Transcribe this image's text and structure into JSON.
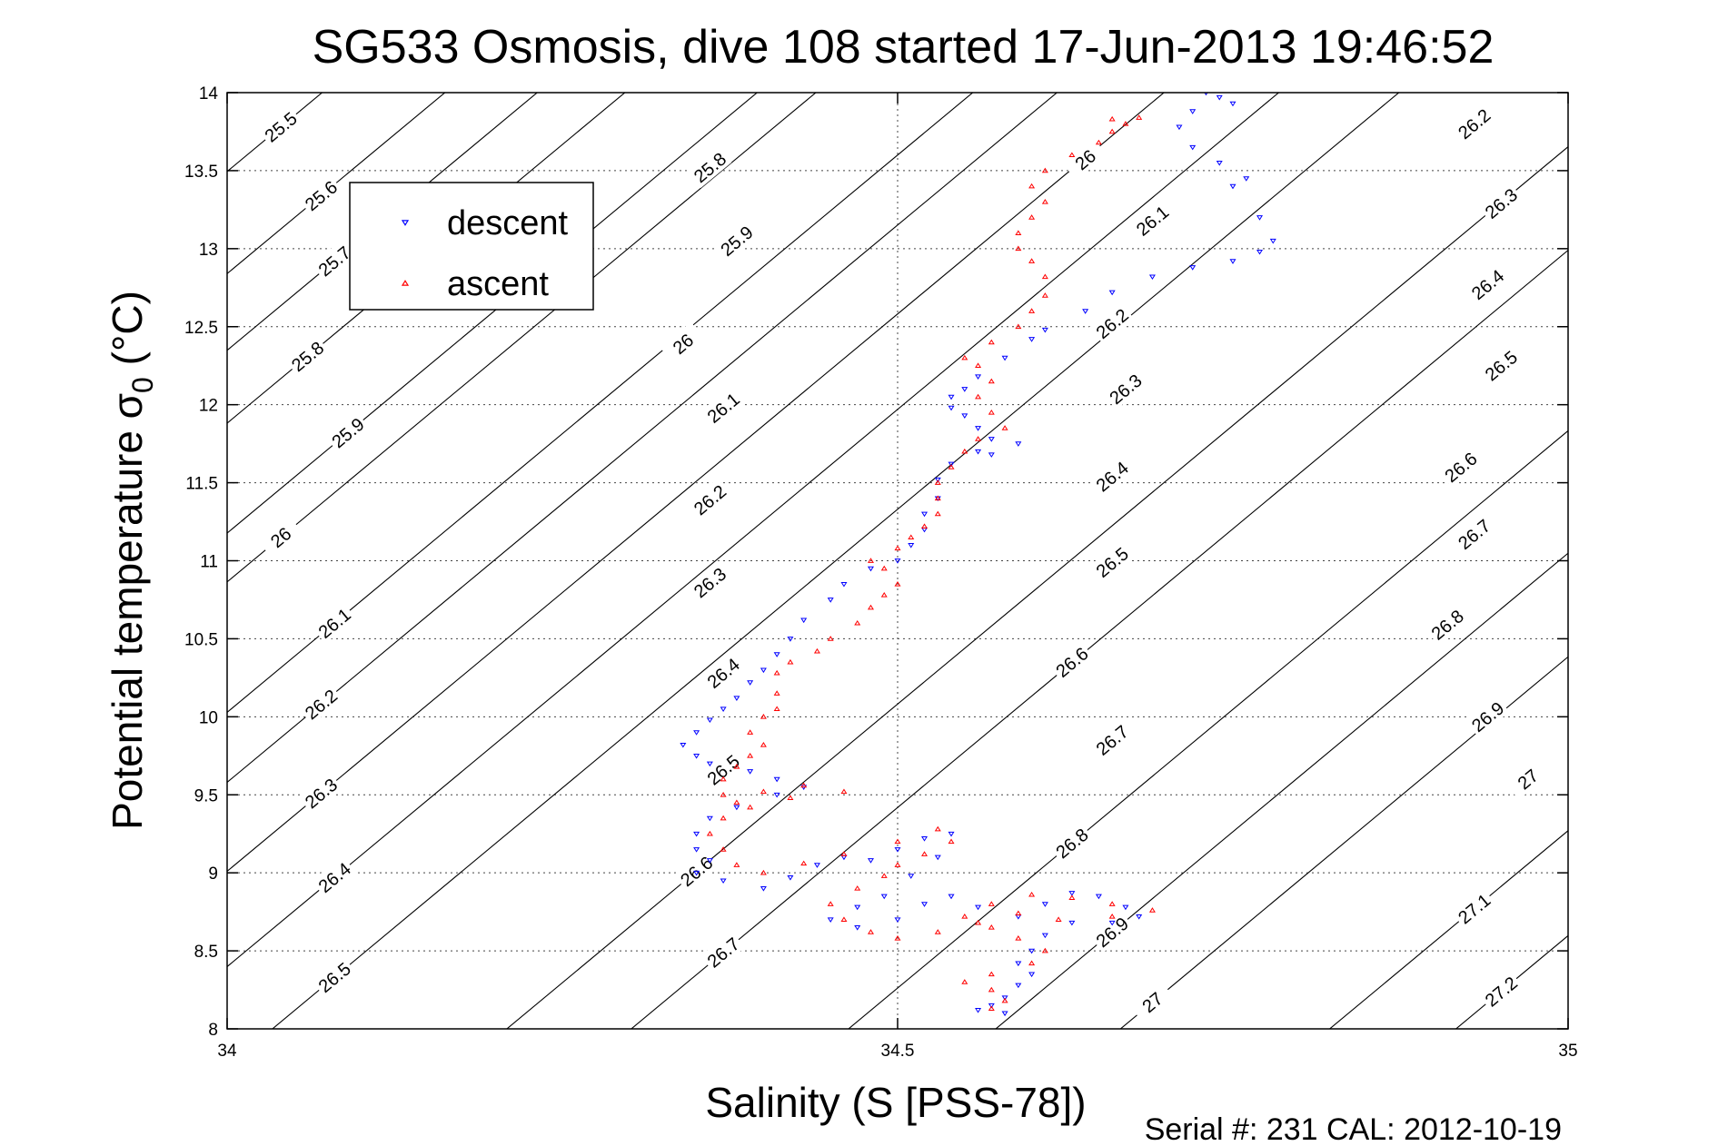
{
  "chart_data": {
    "type": "scatter",
    "title": "SG533 Osmosis, dive 108 started 17-Jun-2013 19:46:52",
    "xlabel": "Salinity (S [PSS-78])",
    "ylabel": "Potential temperature σ",
    "ylabel_sub": "0",
    "ylabel_unit": " (°C)",
    "footer": "Serial #: 231  CAL: 2012-10-19",
    "xlim": [
      34,
      35
    ],
    "ylim": [
      8,
      14
    ],
    "xticks": [
      "34",
      "34.5",
      "35"
    ],
    "yticks": [
      "8",
      "8.5",
      "9",
      "9.5",
      "10",
      "10.5",
      "11",
      "11.5",
      "12",
      "12.5",
      "13",
      "13.5",
      "14"
    ],
    "grid": true,
    "legend": {
      "placement": "top-left",
      "entries": [
        {
          "name": "descent",
          "color": "#0000ff",
          "marker": "triangle-down"
        },
        {
          "name": "ascent",
          "color": "#ff0000",
          "marker": "triangle-up"
        }
      ]
    },
    "density_contours": [
      {
        "level": "25.5",
        "labels": [
          [
            34.04,
            13.78
          ]
        ]
      },
      {
        "level": "25.6",
        "labels": [
          [
            34.07,
            13.34
          ]
        ]
      },
      {
        "level": "25.7",
        "labels": [
          [
            34.08,
            12.92
          ]
        ]
      },
      {
        "level": "25.8",
        "labels": [
          [
            34.06,
            12.31
          ],
          [
            34.36,
            13.52
          ]
        ]
      },
      {
        "level": "25.9",
        "labels": [
          [
            34.09,
            11.82
          ],
          [
            34.38,
            13.05
          ]
        ]
      },
      {
        "level": "26",
        "labels": [
          [
            34.04,
            11.15
          ],
          [
            34.34,
            12.39
          ],
          [
            34.64,
            13.57
          ]
        ]
      },
      {
        "level": "26.1",
        "labels": [
          [
            34.08,
            10.6
          ],
          [
            34.37,
            11.98
          ],
          [
            34.69,
            13.18
          ]
        ]
      },
      {
        "level": "26.2",
        "labels": [
          [
            34.07,
            10.08
          ],
          [
            34.36,
            11.39
          ],
          [
            34.66,
            12.52
          ],
          [
            34.93,
            13.8
          ]
        ]
      },
      {
        "level": "26.3",
        "labels": [
          [
            34.07,
            9.51
          ],
          [
            34.36,
            10.86
          ],
          [
            34.67,
            12.1
          ],
          [
            34.95,
            13.29
          ]
        ]
      },
      {
        "level": "26.4",
        "labels": [
          [
            34.08,
            8.97
          ],
          [
            34.37,
            10.28
          ],
          [
            34.66,
            11.54
          ],
          [
            34.94,
            12.77
          ]
        ]
      },
      {
        "level": "26.5",
        "labels": [
          [
            34.08,
            8.33
          ],
          [
            34.37,
            9.66
          ],
          [
            34.66,
            10.99
          ],
          [
            34.95,
            12.25
          ]
        ]
      },
      {
        "level": "26.6",
        "labels": [
          [
            34.35,
            9.01
          ],
          [
            34.63,
            10.35
          ],
          [
            34.92,
            11.6
          ]
        ]
      },
      {
        "level": "26.7",
        "labels": [
          [
            34.37,
            8.49
          ],
          [
            34.66,
            9.85
          ],
          [
            34.93,
            11.17
          ]
        ]
      },
      {
        "level": "26.8",
        "labels": [
          [
            34.63,
            9.19
          ],
          [
            34.91,
            10.59
          ]
        ]
      },
      {
        "level": "26.9",
        "labels": [
          [
            34.66,
            8.62
          ],
          [
            34.94,
            10.0
          ]
        ]
      },
      {
        "level": "27",
        "labels": [
          [
            34.69,
            8.17
          ],
          [
            34.97,
            9.6
          ]
        ]
      },
      {
        "level": "27.1",
        "labels": [
          [
            34.93,
            8.77
          ]
        ]
      },
      {
        "level": "27.2",
        "labels": [
          [
            34.95,
            8.24
          ]
        ]
      }
    ],
    "series": [
      {
        "name": "descent",
        "color": "#0000ff",
        "marker": "triangle-down",
        "points": [
          [
            34.73,
            14.0
          ],
          [
            34.74,
            13.97
          ],
          [
            34.75,
            13.93
          ],
          [
            34.72,
            13.88
          ],
          [
            34.71,
            13.78
          ],
          [
            34.72,
            13.65
          ],
          [
            34.74,
            13.55
          ],
          [
            34.76,
            13.45
          ],
          [
            34.75,
            13.4
          ],
          [
            34.77,
            13.2
          ],
          [
            34.78,
            13.05
          ],
          [
            34.77,
            12.98
          ],
          [
            34.75,
            12.92
          ],
          [
            34.72,
            12.88
          ],
          [
            34.69,
            12.82
          ],
          [
            34.66,
            12.72
          ],
          [
            34.64,
            12.6
          ],
          [
            34.61,
            12.48
          ],
          [
            34.6,
            12.42
          ],
          [
            34.58,
            12.3
          ],
          [
            34.56,
            12.18
          ],
          [
            34.55,
            12.1
          ],
          [
            34.54,
            12.05
          ],
          [
            34.54,
            11.98
          ],
          [
            34.55,
            11.93
          ],
          [
            34.56,
            11.85
          ],
          [
            34.57,
            11.78
          ],
          [
            34.59,
            11.75
          ],
          [
            34.57,
            11.68
          ],
          [
            34.56,
            11.7
          ],
          [
            34.54,
            11.62
          ],
          [
            34.53,
            11.52
          ],
          [
            34.53,
            11.4
          ],
          [
            34.52,
            11.3
          ],
          [
            34.52,
            11.2
          ],
          [
            34.51,
            11.1
          ],
          [
            34.5,
            11.0
          ],
          [
            34.48,
            10.95
          ],
          [
            34.46,
            10.85
          ],
          [
            34.45,
            10.75
          ],
          [
            34.43,
            10.62
          ],
          [
            34.42,
            10.5
          ],
          [
            34.41,
            10.4
          ],
          [
            34.4,
            10.3
          ],
          [
            34.39,
            10.22
          ],
          [
            34.38,
            10.12
          ],
          [
            34.37,
            10.05
          ],
          [
            34.36,
            9.98
          ],
          [
            34.35,
            9.9
          ],
          [
            34.34,
            9.82
          ],
          [
            34.35,
            9.75
          ],
          [
            34.36,
            9.7
          ],
          [
            34.39,
            9.65
          ],
          [
            34.41,
            9.6
          ],
          [
            34.43,
            9.55
          ],
          [
            34.41,
            9.5
          ],
          [
            34.38,
            9.42
          ],
          [
            34.36,
            9.35
          ],
          [
            34.35,
            9.25
          ],
          [
            34.35,
            9.15
          ],
          [
            34.36,
            9.08
          ],
          [
            34.35,
            9.0
          ],
          [
            34.37,
            8.95
          ],
          [
            34.4,
            8.9
          ],
          [
            34.42,
            8.97
          ],
          [
            34.44,
            9.05
          ],
          [
            34.46,
            9.1
          ],
          [
            34.48,
            9.08
          ],
          [
            34.5,
            9.15
          ],
          [
            34.52,
            9.22
          ],
          [
            34.54,
            9.25
          ],
          [
            34.53,
            9.1
          ],
          [
            34.51,
            8.98
          ],
          [
            34.49,
            8.85
          ],
          [
            34.47,
            8.78
          ],
          [
            34.45,
            8.7
          ],
          [
            34.47,
            8.65
          ],
          [
            34.5,
            8.7
          ],
          [
            34.52,
            8.8
          ],
          [
            34.54,
            8.85
          ],
          [
            34.56,
            8.78
          ],
          [
            34.59,
            8.72
          ],
          [
            34.61,
            8.8
          ],
          [
            34.63,
            8.87
          ],
          [
            34.65,
            8.85
          ],
          [
            34.67,
            8.78
          ],
          [
            34.68,
            8.72
          ],
          [
            34.66,
            8.68
          ],
          [
            34.63,
            8.68
          ],
          [
            34.61,
            8.6
          ],
          [
            34.6,
            8.5
          ],
          [
            34.59,
            8.42
          ],
          [
            34.6,
            8.35
          ],
          [
            34.59,
            8.28
          ],
          [
            34.58,
            8.2
          ],
          [
            34.57,
            8.15
          ],
          [
            34.56,
            8.12
          ],
          [
            34.58,
            8.1
          ]
        ]
      },
      {
        "name": "ascent",
        "color": "#ff0000",
        "marker": "triangle-up",
        "points": [
          [
            34.57,
            8.13
          ],
          [
            34.58,
            8.18
          ],
          [
            34.57,
            8.25
          ],
          [
            34.55,
            8.3
          ],
          [
            34.57,
            8.35
          ],
          [
            34.6,
            8.42
          ],
          [
            34.61,
            8.5
          ],
          [
            34.59,
            8.58
          ],
          [
            34.57,
            8.65
          ],
          [
            34.55,
            8.72
          ],
          [
            34.57,
            8.8
          ],
          [
            34.6,
            8.86
          ],
          [
            34.63,
            8.84
          ],
          [
            34.66,
            8.8
          ],
          [
            34.69,
            8.76
          ],
          [
            34.66,
            8.72
          ],
          [
            34.62,
            8.7
          ],
          [
            34.59,
            8.74
          ],
          [
            34.56,
            8.68
          ],
          [
            34.53,
            8.62
          ],
          [
            34.5,
            8.58
          ],
          [
            34.48,
            8.62
          ],
          [
            34.46,
            8.7
          ],
          [
            34.45,
            8.8
          ],
          [
            34.47,
            8.9
          ],
          [
            34.49,
            8.98
          ],
          [
            34.5,
            9.05
          ],
          [
            34.52,
            9.12
          ],
          [
            34.54,
            9.2
          ],
          [
            34.53,
            9.28
          ],
          [
            34.5,
            9.2
          ],
          [
            34.46,
            9.12
          ],
          [
            34.43,
            9.06
          ],
          [
            34.4,
            9.0
          ],
          [
            34.38,
            9.05
          ],
          [
            34.37,
            9.15
          ],
          [
            34.36,
            9.25
          ],
          [
            34.37,
            9.35
          ],
          [
            34.38,
            9.45
          ],
          [
            34.4,
            9.52
          ],
          [
            34.43,
            9.56
          ],
          [
            34.46,
            9.52
          ],
          [
            34.42,
            9.48
          ],
          [
            34.39,
            9.42
          ],
          [
            34.37,
            9.5
          ],
          [
            34.37,
            9.6
          ],
          [
            34.38,
            9.68
          ],
          [
            34.39,
            9.75
          ],
          [
            34.4,
            9.82
          ],
          [
            34.39,
            9.9
          ],
          [
            34.4,
            10.0
          ],
          [
            34.41,
            10.05
          ],
          [
            34.41,
            10.15
          ],
          [
            34.41,
            10.28
          ],
          [
            34.42,
            10.35
          ],
          [
            34.44,
            10.42
          ],
          [
            34.45,
            10.5
          ],
          [
            34.47,
            10.6
          ],
          [
            34.48,
            10.7
          ],
          [
            34.49,
            10.78
          ],
          [
            34.5,
            10.85
          ],
          [
            34.49,
            10.95
          ],
          [
            34.48,
            11.0
          ],
          [
            34.5,
            11.08
          ],
          [
            34.51,
            11.15
          ],
          [
            34.52,
            11.22
          ],
          [
            34.53,
            11.3
          ],
          [
            34.53,
            11.4
          ],
          [
            34.53,
            11.5
          ],
          [
            34.54,
            11.6
          ],
          [
            34.55,
            11.7
          ],
          [
            34.56,
            11.78
          ],
          [
            34.58,
            11.85
          ],
          [
            34.57,
            11.95
          ],
          [
            34.56,
            12.05
          ],
          [
            34.57,
            12.15
          ],
          [
            34.56,
            12.25
          ],
          [
            34.55,
            12.3
          ],
          [
            34.57,
            12.4
          ],
          [
            34.59,
            12.5
          ],
          [
            34.6,
            12.6
          ],
          [
            34.61,
            12.7
          ],
          [
            34.61,
            12.82
          ],
          [
            34.6,
            12.92
          ],
          [
            34.59,
            13.0
          ],
          [
            34.59,
            13.1
          ],
          [
            34.6,
            13.2
          ],
          [
            34.61,
            13.3
          ],
          [
            34.6,
            13.4
          ],
          [
            34.61,
            13.5
          ],
          [
            34.63,
            13.6
          ],
          [
            34.65,
            13.68
          ],
          [
            34.66,
            13.75
          ],
          [
            34.67,
            13.8
          ],
          [
            34.68,
            13.84
          ],
          [
            34.66,
            13.83
          ]
        ]
      }
    ]
  }
}
